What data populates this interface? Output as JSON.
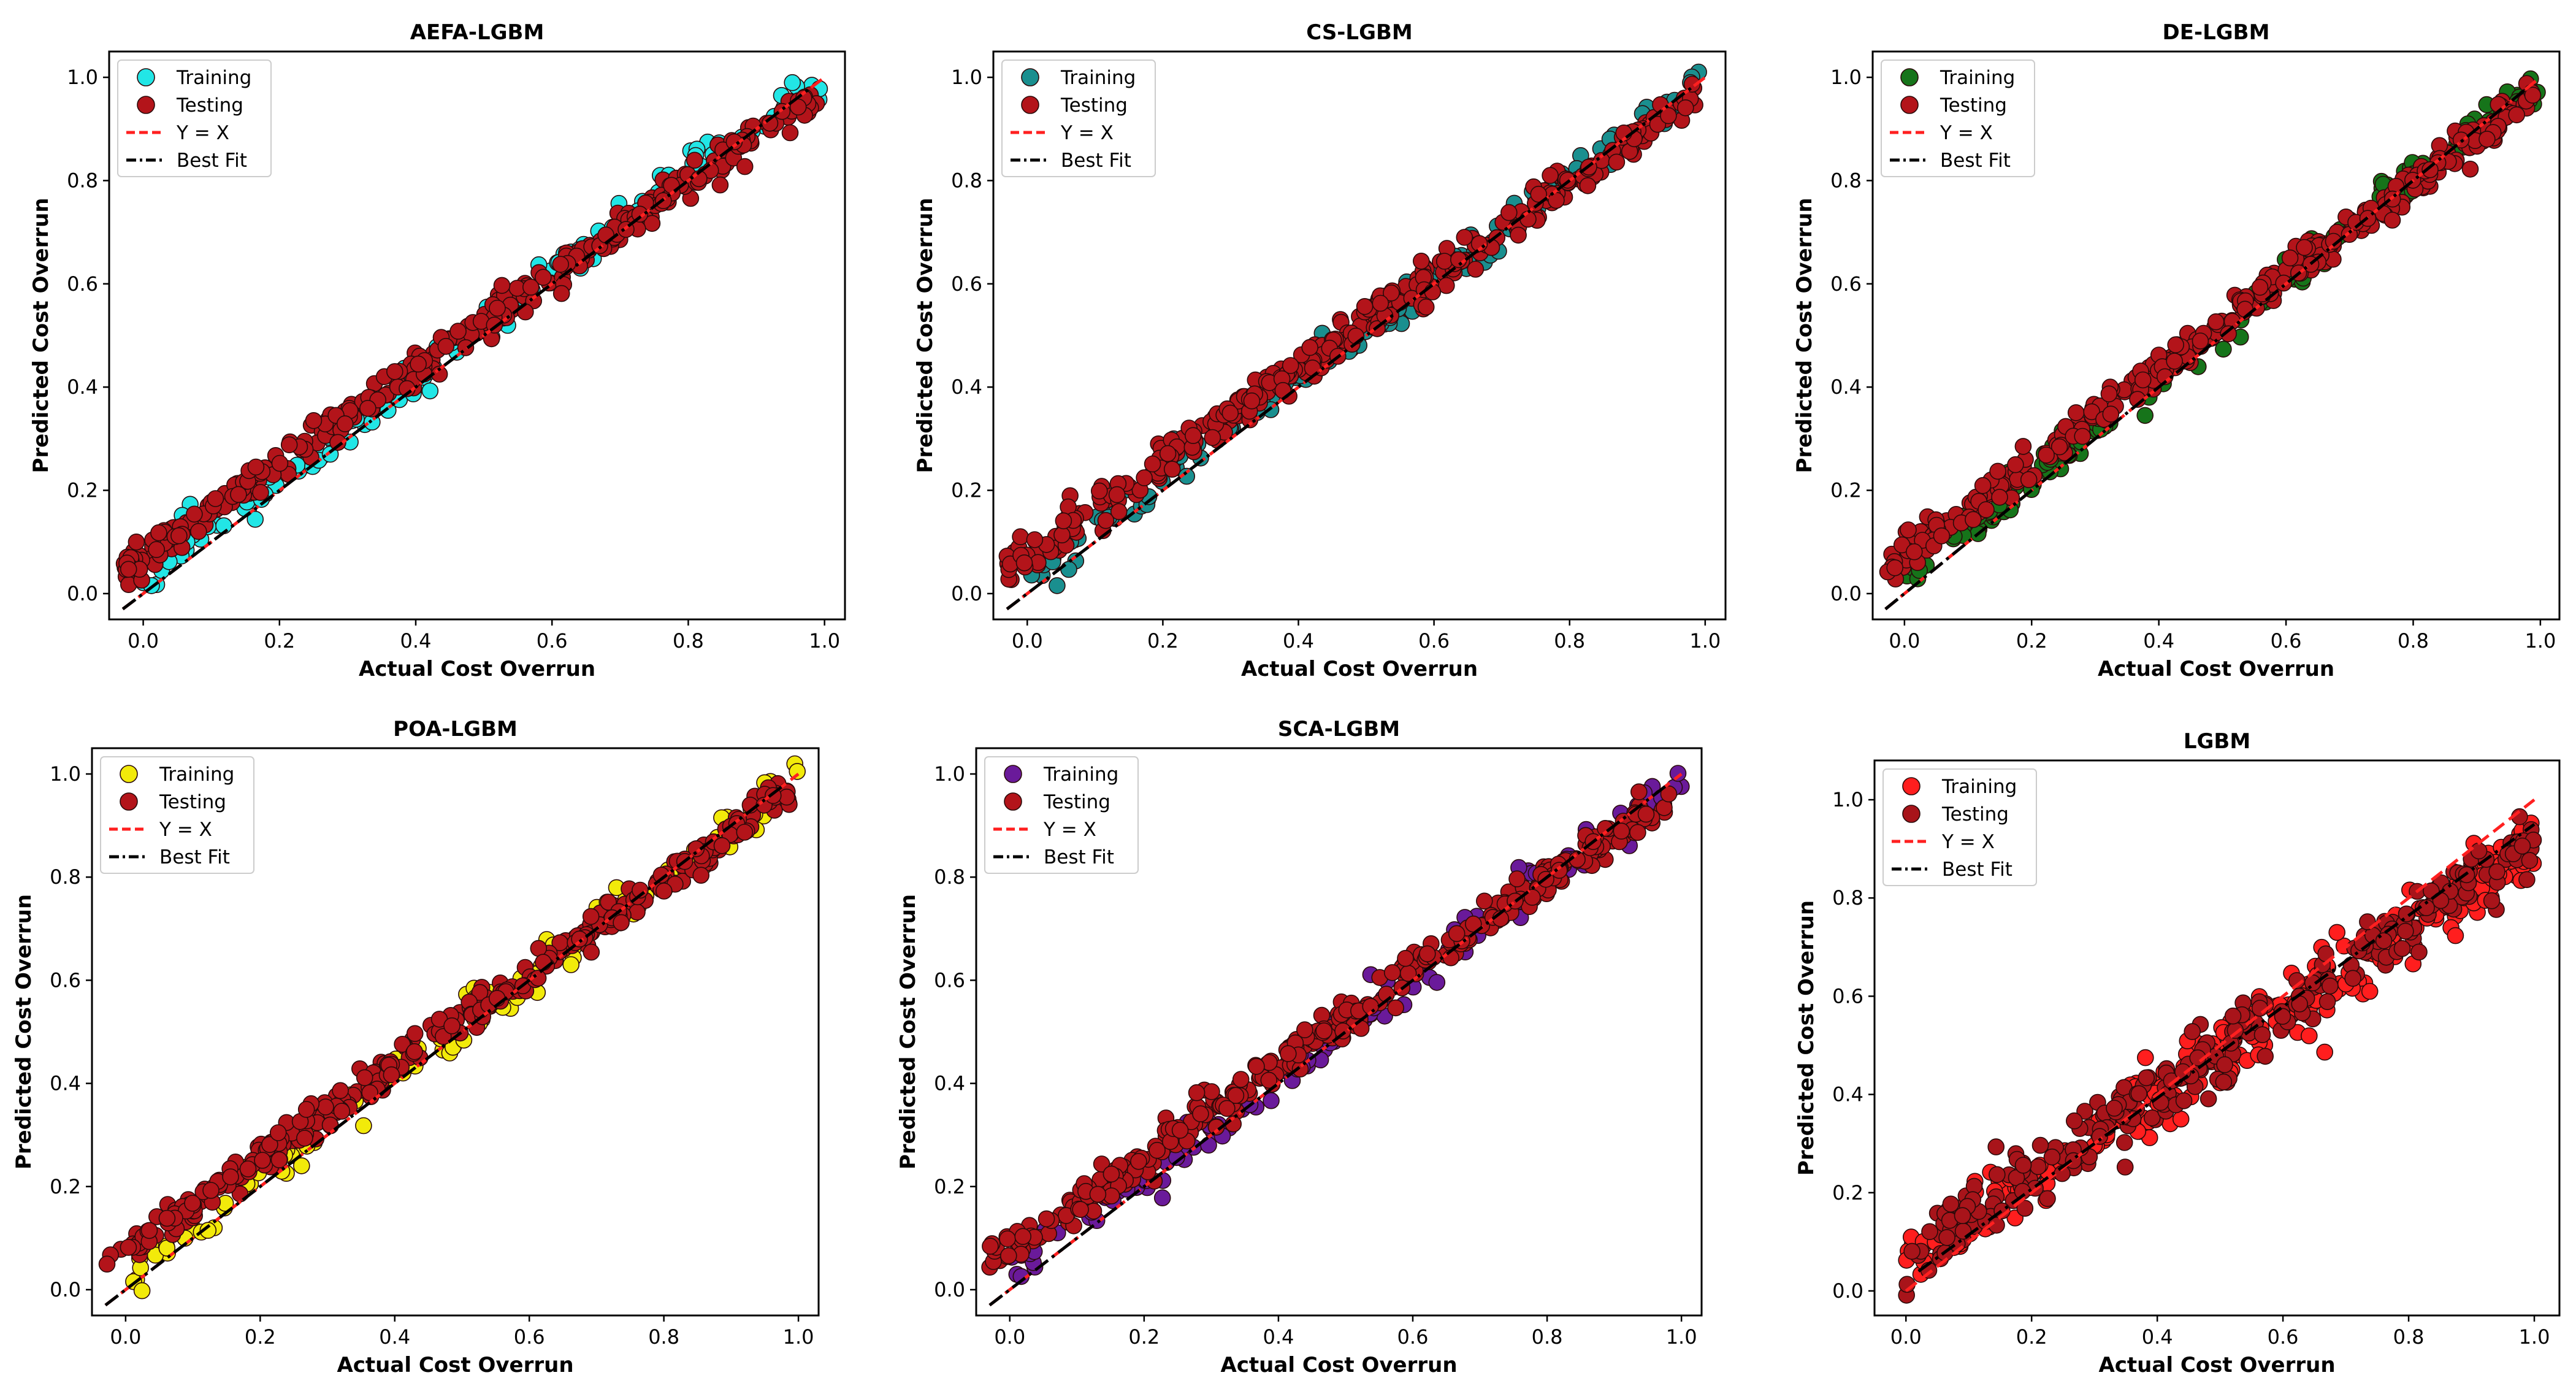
{
  "figure": {
    "description_free": true
  },
  "chart_data": [
    {
      "type": "scatter",
      "title": "AEFA-LGBM",
      "xlabel": "Actual Cost Overrun",
      "ylabel": "Predicted  Cost Overrun",
      "xlim": [
        -0.05,
        1.03
      ],
      "ylim": [
        -0.05,
        1.05
      ],
      "xticks": [
        0.0,
        0.2,
        0.4,
        0.6,
        0.8,
        1.0
      ],
      "yticks": [
        0.0,
        0.2,
        0.4,
        0.6,
        0.8,
        1.0
      ],
      "tick_labels": [
        "0.0",
        "0.2",
        "0.4",
        "0.6",
        "0.8",
        "1.0"
      ],
      "grid": false,
      "legend_position": "top-left",
      "training_color": "#22e6e6",
      "series": [
        {
          "name": "Training",
          "kind": "points",
          "color": "#22e6e6",
          "x_range": [
            0.0,
            1.0
          ],
          "slope": 0.97,
          "intercept": 0.035,
          "noise": 0.02,
          "count": 150,
          "seed": 11
        },
        {
          "name": "Testing",
          "kind": "points",
          "color": "#b3141a",
          "x_range": [
            -0.03,
            0.99
          ],
          "slope": 0.9,
          "intercept": 0.075,
          "noise": 0.018,
          "count": 330,
          "seed": 12
        },
        {
          "name": "Y = X",
          "kind": "line",
          "color": "#ff2020",
          "dash": "dashed",
          "x": [
            -0.03,
            1.0
          ],
          "y": [
            -0.03,
            1.0
          ]
        },
        {
          "name": "Best Fit",
          "kind": "line",
          "color": "#000000",
          "dash": "dashdot",
          "x": [
            -0.03,
            0.98
          ],
          "y": [
            -0.03,
            0.98
          ]
        }
      ]
    },
    {
      "type": "scatter",
      "title": "CS-LGBM",
      "xlabel": "Actual Cost Overrun",
      "ylabel": "Predicted  Cost Overrun",
      "xlim": [
        -0.05,
        1.03
      ],
      "ylim": [
        -0.05,
        1.05
      ],
      "xticks": [
        0.0,
        0.2,
        0.4,
        0.6,
        0.8,
        1.0
      ],
      "yticks": [
        0.0,
        0.2,
        0.4,
        0.6,
        0.8,
        1.0
      ],
      "tick_labels": [
        "0.0",
        "0.2",
        "0.4",
        "0.6",
        "0.8",
        "1.0"
      ],
      "grid": false,
      "legend_position": "top-left",
      "training_color": "#1a8f8f",
      "series": [
        {
          "name": "Training",
          "kind": "points",
          "color": "#1a8f8f",
          "x_range": [
            0.0,
            1.0
          ],
          "slope": 0.96,
          "intercept": 0.035,
          "noise": 0.02,
          "count": 150,
          "seed": 21
        },
        {
          "name": "Testing",
          "kind": "points",
          "color": "#b3141a",
          "x_range": [
            -0.03,
            0.99
          ],
          "slope": 0.9,
          "intercept": 0.075,
          "noise": 0.018,
          "count": 330,
          "seed": 22
        },
        {
          "name": "Y = X",
          "kind": "line",
          "color": "#ff2020",
          "dash": "dashed",
          "x": [
            -0.03,
            1.0
          ],
          "y": [
            -0.03,
            1.0
          ]
        },
        {
          "name": "Best Fit",
          "kind": "line",
          "color": "#000000",
          "dash": "dashdot",
          "x": [
            -0.03,
            0.98
          ],
          "y": [
            -0.03,
            0.98
          ]
        }
      ]
    },
    {
      "type": "scatter",
      "title": "DE-LGBM",
      "xlabel": "Actual Cost Overrun",
      "ylabel": "Predicted  Cost Overrun",
      "xlim": [
        -0.05,
        1.03
      ],
      "ylim": [
        -0.05,
        1.05
      ],
      "xticks": [
        0.0,
        0.2,
        0.4,
        0.6,
        0.8,
        1.0
      ],
      "yticks": [
        0.0,
        0.2,
        0.4,
        0.6,
        0.8,
        1.0
      ],
      "tick_labels": [
        "0.0",
        "0.2",
        "0.4",
        "0.6",
        "0.8",
        "1.0"
      ],
      "grid": false,
      "legend_position": "top-left",
      "training_color": "#16741a",
      "series": [
        {
          "name": "Training",
          "kind": "points",
          "color": "#16741a",
          "x_range": [
            0.0,
            1.0
          ],
          "slope": 0.96,
          "intercept": 0.035,
          "noise": 0.02,
          "count": 150,
          "seed": 31
        },
        {
          "name": "Testing",
          "kind": "points",
          "color": "#b3141a",
          "x_range": [
            -0.03,
            0.99
          ],
          "slope": 0.9,
          "intercept": 0.075,
          "noise": 0.018,
          "count": 330,
          "seed": 32
        },
        {
          "name": "Y = X",
          "kind": "line",
          "color": "#ff2020",
          "dash": "dashed",
          "x": [
            -0.03,
            1.0
          ],
          "y": [
            -0.03,
            1.0
          ]
        },
        {
          "name": "Best Fit",
          "kind": "line",
          "color": "#000000",
          "dash": "dashdot",
          "x": [
            -0.03,
            0.98
          ],
          "y": [
            -0.03,
            0.98
          ]
        }
      ]
    },
    {
      "type": "scatter",
      "title": "POA-LGBM",
      "xlabel": "Actual Cost Overrun",
      "ylabel": "Predicted  Cost Overrun",
      "xlim": [
        -0.05,
        1.03
      ],
      "ylim": [
        -0.05,
        1.05
      ],
      "xticks": [
        0.0,
        0.2,
        0.4,
        0.6,
        0.8,
        1.0
      ],
      "yticks": [
        0.0,
        0.2,
        0.4,
        0.6,
        0.8,
        1.0
      ],
      "tick_labels": [
        "0.0",
        "0.2",
        "0.4",
        "0.6",
        "0.8",
        "1.0"
      ],
      "grid": false,
      "legend_position": "top-left",
      "training_color": "#f2ea0a",
      "series": [
        {
          "name": "Training",
          "kind": "points",
          "color": "#f2ea0a",
          "x_range": [
            0.0,
            1.0
          ],
          "slope": 0.96,
          "intercept": 0.03,
          "noise": 0.022,
          "count": 150,
          "seed": 41
        },
        {
          "name": "Testing",
          "kind": "points",
          "color": "#b3141a",
          "x_range": [
            -0.03,
            0.99
          ],
          "slope": 0.9,
          "intercept": 0.075,
          "noise": 0.018,
          "count": 330,
          "seed": 42
        },
        {
          "name": "Y = X",
          "kind": "line",
          "color": "#ff2020",
          "dash": "dashed",
          "x": [
            -0.03,
            1.0
          ],
          "y": [
            -0.03,
            1.0
          ]
        },
        {
          "name": "Best Fit",
          "kind": "line",
          "color": "#000000",
          "dash": "dashdot",
          "x": [
            -0.03,
            0.98
          ],
          "y": [
            -0.03,
            0.98
          ]
        }
      ]
    },
    {
      "type": "scatter",
      "title": "SCA-LGBM",
      "xlabel": "Actual Cost Overrun",
      "ylabel": "Predicted  Cost Overrun",
      "xlim": [
        -0.05,
        1.03
      ],
      "ylim": [
        -0.05,
        1.05
      ],
      "xticks": [
        0.0,
        0.2,
        0.4,
        0.6,
        0.8,
        1.0
      ],
      "yticks": [
        0.0,
        0.2,
        0.4,
        0.6,
        0.8,
        1.0
      ],
      "tick_labels": [
        "0.0",
        "0.2",
        "0.4",
        "0.6",
        "0.8",
        "1.0"
      ],
      "grid": false,
      "legend_position": "top-left",
      "training_color": "#6a1a9a",
      "series": [
        {
          "name": "Training",
          "kind": "points",
          "color": "#6a1a9a",
          "x_range": [
            0.0,
            1.0
          ],
          "slope": 0.96,
          "intercept": 0.03,
          "noise": 0.022,
          "count": 150,
          "seed": 51
        },
        {
          "name": "Testing",
          "kind": "points",
          "color": "#b3141a",
          "x_range": [
            -0.03,
            0.99
          ],
          "slope": 0.9,
          "intercept": 0.075,
          "noise": 0.018,
          "count": 330,
          "seed": 52
        },
        {
          "name": "Y = X",
          "kind": "line",
          "color": "#ff2020",
          "dash": "dashed",
          "x": [
            -0.03,
            1.0
          ],
          "y": [
            -0.03,
            1.0
          ]
        },
        {
          "name": "Best Fit",
          "kind": "line",
          "color": "#000000",
          "dash": "dashdot",
          "x": [
            -0.03,
            0.98
          ],
          "y": [
            -0.03,
            0.98
          ]
        }
      ]
    },
    {
      "type": "scatter",
      "title": "LGBM",
      "xlabel": "Actual Cost Overrun",
      "ylabel": "Predicted  Cost Overrun",
      "xlim": [
        -0.05,
        1.04
      ],
      "ylim": [
        -0.05,
        1.08
      ],
      "xticks": [
        0.0,
        0.2,
        0.4,
        0.6,
        0.8,
        1.0
      ],
      "yticks": [
        0.0,
        0.2,
        0.4,
        0.6,
        0.8,
        1.0
      ],
      "tick_labels": [
        "0.0",
        "0.2",
        "0.4",
        "0.6",
        "0.8",
        "1.0"
      ],
      "grid": false,
      "legend_position": "top-left",
      "training_color": "#ff1e1e",
      "series": [
        {
          "name": "Training",
          "kind": "points",
          "color": "#ff1e1e",
          "x_range": [
            0.0,
            1.0
          ],
          "slope": 0.85,
          "intercept": 0.06,
          "noise": 0.035,
          "count": 300,
          "seed": 61
        },
        {
          "name": "Testing",
          "kind": "points",
          "color": "#a8141a",
          "x_range": [
            0.0,
            1.0
          ],
          "slope": 0.85,
          "intercept": 0.065,
          "noise": 0.035,
          "count": 260,
          "seed": 62
        },
        {
          "name": "Y = X",
          "kind": "line",
          "color": "#ff2020",
          "dash": "dashed",
          "x": [
            0.0,
            1.0
          ],
          "y": [
            0.0,
            1.0
          ]
        },
        {
          "name": "Best Fit",
          "kind": "line",
          "color": "#000000",
          "dash": "dashdot",
          "x": [
            0.02,
            1.0
          ],
          "y": [
            0.04,
            0.95
          ]
        }
      ]
    }
  ]
}
